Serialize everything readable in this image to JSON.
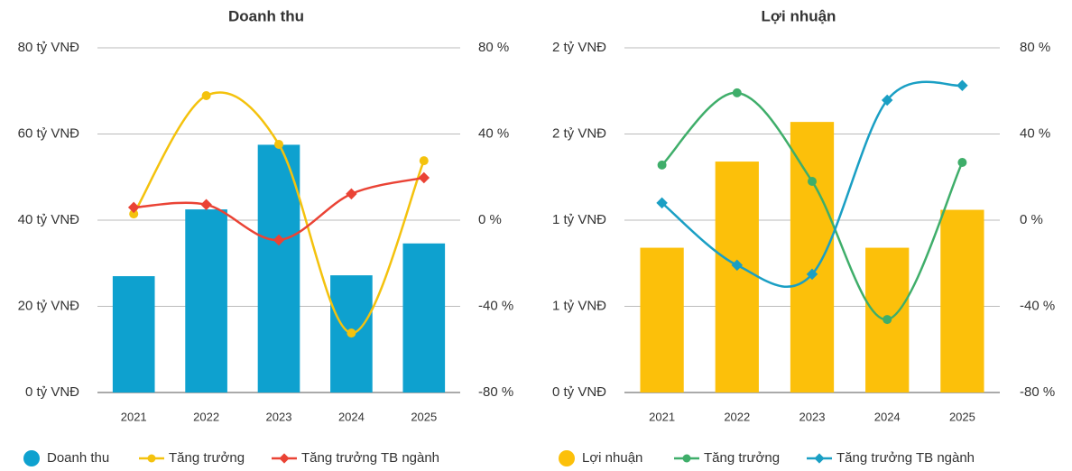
{
  "chart_data": [
    {
      "type": "bar",
      "title": "Doanh thu",
      "categories": [
        "2021",
        "2022",
        "2023",
        "2024",
        "2025"
      ],
      "series": [
        {
          "name": "Doanh thu",
          "type": "bar",
          "color": "#0ea1cf",
          "values": [
            27,
            42.5,
            57.5,
            27.2,
            34.6
          ]
        },
        {
          "name": "Tăng trưởng",
          "type": "line",
          "marker": "circle",
          "axis": "y2",
          "color": "#f4c20d",
          "values": [
            2.9,
            57.8,
            35.2,
            -52.4,
            27.6
          ]
        },
        {
          "name": "Tăng trưởng TB ngành",
          "type": "line",
          "marker": "diamond",
          "axis": "y2",
          "color": "#ea4335",
          "values": [
            5.9,
            7.2,
            -9.2,
            12.2,
            19.7
          ]
        }
      ],
      "ylim": [
        0,
        80
      ],
      "yticks": [
        {
          "value": 0,
          "label": "0 tỷ VNĐ"
        },
        {
          "value": 20,
          "label": "20 tỷ VNĐ"
        },
        {
          "value": 40,
          "label": "40 tỷ VNĐ"
        },
        {
          "value": 60,
          "label": "60 tỷ VNĐ"
        },
        {
          "value": 80,
          "label": "80 tỷ VNĐ"
        }
      ],
      "y2lim": [
        -80,
        80
      ],
      "y2ticks": [
        {
          "value": -80,
          "label": "-80 %"
        },
        {
          "value": -40,
          "label": "-40 %"
        },
        {
          "value": 0,
          "label": "0 %"
        },
        {
          "value": 40,
          "label": "40 %"
        },
        {
          "value": 80,
          "label": "80 %"
        }
      ],
      "grid": true,
      "legend": "bottom"
    },
    {
      "type": "bar",
      "title": "Lợi nhuận",
      "categories": [
        "2021",
        "2022",
        "2023",
        "2024",
        "2025"
      ],
      "series": [
        {
          "name": "Lợi nhuận",
          "type": "bar",
          "color": "#fcc00a",
          "values": [
            0.84,
            1.34,
            1.57,
            0.84,
            1.06
          ]
        },
        {
          "name": "Tăng trưởng",
          "type": "line",
          "marker": "circle",
          "axis": "y2",
          "color": "#3fae6a",
          "values": [
            25.6,
            59.1,
            18,
            -46.1,
            26.8
          ]
        },
        {
          "name": "Tăng trưởng TB ngành",
          "type": "line",
          "marker": "diamond",
          "axis": "y2",
          "color": "#1a9fc4",
          "values": [
            8,
            -20.9,
            -25.1,
            55.7,
            62.5
          ]
        }
      ],
      "ylim": [
        0,
        2
      ],
      "yticks": [
        {
          "value": 0,
          "label": "0 tỷ VNĐ"
        },
        {
          "value": 0.5,
          "label": "1 tỷ VNĐ"
        },
        {
          "value": 1,
          "label": "1 tỷ VNĐ"
        },
        {
          "value": 1.5,
          "label": "2 tỷ VNĐ"
        },
        {
          "value": 2,
          "label": "2 tỷ VNĐ"
        }
      ],
      "y2lim": [
        -80,
        80
      ],
      "y2ticks": [
        {
          "value": -80,
          "label": "-80 %"
        },
        {
          "value": -40,
          "label": "-40 %"
        },
        {
          "value": 0,
          "label": "0 %"
        },
        {
          "value": 40,
          "label": "40 %"
        },
        {
          "value": 80,
          "label": "80 %"
        }
      ],
      "grid": true,
      "legend": "bottom"
    }
  ]
}
